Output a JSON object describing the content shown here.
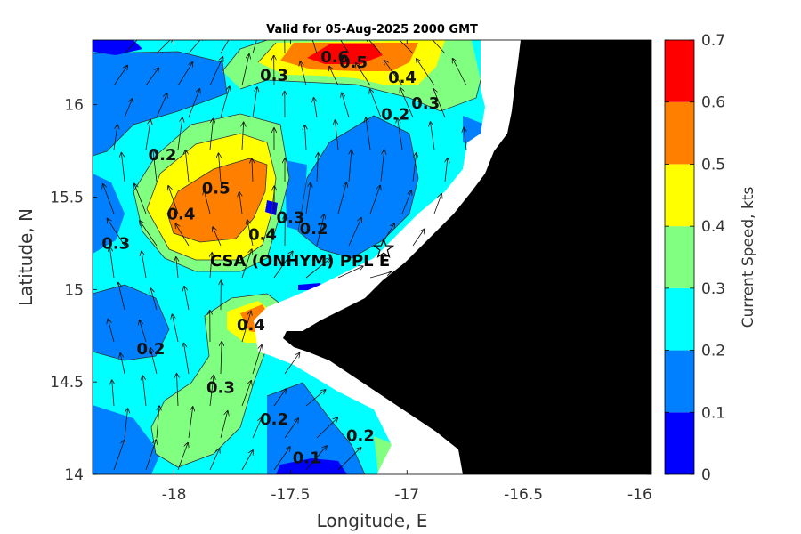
{
  "chart_data": {
    "type": "contour",
    "title": "Valid for 05-Aug-2025 2000 GMT",
    "xlabel": "Longitude, E",
    "ylabel": "Latitude, N",
    "xlim": [
      -18.35,
      -15.95
    ],
    "ylim": [
      14.0,
      16.35
    ],
    "x_ticks": [
      -18,
      -17.5,
      -17,
      -16.5,
      -16
    ],
    "y_ticks": [
      14,
      14.5,
      15,
      15.5,
      16
    ],
    "colorbar": {
      "label": "Current Speed, kts",
      "ticks": [
        0,
        0.1,
        0.2,
        0.3,
        0.4,
        0.5,
        0.6,
        0.7
      ],
      "levels": [
        {
          "from": 0.0,
          "to": 0.1,
          "color": "#0000ff"
        },
        {
          "from": 0.1,
          "to": 0.2,
          "color": "#0080ff"
        },
        {
          "from": 0.2,
          "to": 0.3,
          "color": "#00ffff"
        },
        {
          "from": 0.3,
          "to": 0.4,
          "color": "#80ff80"
        },
        {
          "from": 0.4,
          "to": 0.5,
          "color": "#ffff00"
        },
        {
          "from": 0.5,
          "to": 0.6,
          "color": "#ff8000"
        },
        {
          "from": 0.6,
          "to": 0.7,
          "color": "#ff0000"
        }
      ]
    },
    "contour_labels": [
      {
        "text": "0.6",
        "lon": -17.31,
        "lat": 16.23
      },
      {
        "text": "0.5",
        "lon": -17.23,
        "lat": 16.2
      },
      {
        "text": "0.4",
        "lon": -17.02,
        "lat": 16.12
      },
      {
        "text": "0.3",
        "lon": -17.57,
        "lat": 16.13
      },
      {
        "text": "0.3",
        "lon": -16.92,
        "lat": 15.98
      },
      {
        "text": "0.2",
        "lon": -17.05,
        "lat": 15.92
      },
      {
        "text": "0.2",
        "lon": -18.05,
        "lat": 15.7
      },
      {
        "text": "0.5",
        "lon": -17.82,
        "lat": 15.52
      },
      {
        "text": "0.4",
        "lon": -17.97,
        "lat": 15.38
      },
      {
        "text": "0.3",
        "lon": -17.5,
        "lat": 15.36
      },
      {
        "text": "0.4",
        "lon": -17.62,
        "lat": 15.27
      },
      {
        "text": "0.2",
        "lon": -17.4,
        "lat": 15.3
      },
      {
        "text": "0.3",
        "lon": -18.25,
        "lat": 15.22
      },
      {
        "text": "0.4",
        "lon": -17.67,
        "lat": 14.78
      },
      {
        "text": "0.2",
        "lon": -18.1,
        "lat": 14.65
      },
      {
        "text": "0.3",
        "lon": -17.8,
        "lat": 14.44
      },
      {
        "text": "0.2",
        "lon": -17.57,
        "lat": 14.27
      },
      {
        "text": "0.2",
        "lon": -17.2,
        "lat": 14.18
      },
      {
        "text": "0.1",
        "lon": -17.43,
        "lat": 14.06
      }
    ],
    "station": {
      "label": "CSA (ONHYM) PPL E",
      "lon": -17.1,
      "lat": 15.22
    }
  }
}
